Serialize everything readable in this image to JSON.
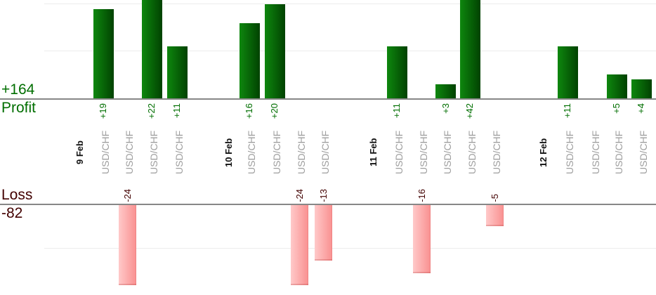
{
  "chart_data": {
    "type": "bar",
    "title": "",
    "description": "Per-trade profit and loss bars split into a profit panel (above zero line) and a loss panel (below zero line), grouped by date",
    "x_axis": {
      "dates": [
        "9 Feb",
        "10 Feb",
        "11 Feb",
        "12 Feb"
      ],
      "symbol_tick": "USD/CHF"
    },
    "profit_panel": {
      "total_label": "+164",
      "axis_label": "Profit",
      "gridlines_at": [
        10,
        20
      ],
      "bar_gradient": [
        "#0e870e",
        "#014201"
      ],
      "text_color": "#006e00"
    },
    "loss_panel": {
      "total_label": "-82",
      "axis_label": "Loss",
      "gridlines_at": [
        -10
      ],
      "bar_gradient": [
        "#ffc9c9",
        "#f99090"
      ],
      "text_color": "#420000"
    },
    "days": [
      {
        "date": "9 Feb",
        "trades": [
          {
            "symbol": "USD/CHF",
            "pnl": 19,
            "label": "+19"
          },
          {
            "symbol": "USD/CHF",
            "pnl": -24,
            "label": "-24"
          },
          {
            "symbol": "USD/CHF",
            "pnl": 22,
            "label": "+22"
          },
          {
            "symbol": "USD/CHF",
            "pnl": 11,
            "label": "+11"
          }
        ]
      },
      {
        "date": "10 Feb",
        "trades": [
          {
            "symbol": "USD/CHF",
            "pnl": 16,
            "label": "+16"
          },
          {
            "symbol": "USD/CHF",
            "pnl": 20,
            "label": "+20"
          },
          {
            "symbol": "USD/CHF",
            "pnl": -24,
            "label": "-24"
          },
          {
            "symbol": "USD/CHF",
            "pnl": -13,
            "label": "-13"
          }
        ]
      },
      {
        "date": "11 Feb",
        "trades": [
          {
            "symbol": "USD/CHF",
            "pnl": 11,
            "label": "+11"
          },
          {
            "symbol": "USD/CHF",
            "pnl": -16,
            "label": "-16"
          },
          {
            "symbol": "USD/CHF",
            "pnl": 3,
            "label": "+3"
          },
          {
            "symbol": "USD/CHF",
            "pnl": 42,
            "label": "+42"
          },
          {
            "symbol": "USD/CHF",
            "pnl": -5,
            "label": "-5"
          }
        ]
      },
      {
        "date": "12 Feb",
        "trades": [
          {
            "symbol": "USD/CHF",
            "pnl": 11,
            "label": "+11"
          },
          {
            "symbol": "USD/CHF",
            "pnl": 0,
            "label": ""
          },
          {
            "symbol": "USD/CHF",
            "pnl": 5,
            "label": "+5"
          },
          {
            "symbol": "USD/CHF",
            "pnl": 4,
            "label": "+4"
          }
        ]
      }
    ],
    "axis_colors": {
      "zero_line": "#878787",
      "gridline": "#ececec",
      "date_text": "#111111",
      "symbol_text": "#9e9e9e"
    }
  }
}
